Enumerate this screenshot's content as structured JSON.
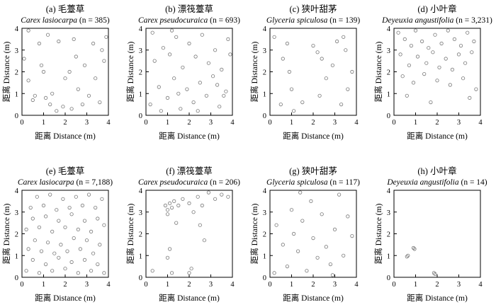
{
  "chart_data": [
    {
      "type": "scatter",
      "title": "(a) 毛薹草",
      "species": "Carex lasiocarpa",
      "count_label": "(n = 385)",
      "xlabel": "距离 Distance (m)",
      "ylabel": "距离 Distance (m)",
      "xlim": [
        0,
        4
      ],
      "ylim": [
        0,
        4
      ],
      "xticks": [
        "0",
        "1",
        "2",
        "3",
        "4"
      ],
      "yticks": [
        "0",
        "1",
        "2",
        "3",
        "4"
      ],
      "n": 385,
      "points": [
        [
          0.1,
          2.6
        ],
        [
          0.3,
          1.6
        ],
        [
          0.5,
          0.7
        ],
        [
          0.6,
          0.9
        ],
        [
          0.8,
          3.3
        ],
        [
          0.9,
          2.3
        ],
        [
          1.0,
          2.0
        ],
        [
          1.1,
          0.8
        ],
        [
          1.3,
          0.5
        ],
        [
          1.4,
          1.0
        ],
        [
          1.6,
          0.2
        ],
        [
          1.7,
          3.4
        ],
        [
          1.9,
          0.4
        ],
        [
          2.0,
          1.7
        ],
        [
          2.2,
          2.0
        ],
        [
          2.3,
          0.3
        ],
        [
          2.4,
          3.5
        ],
        [
          2.6,
          1.2
        ],
        [
          2.8,
          0.5
        ],
        [
          2.9,
          2.3
        ],
        [
          3.1,
          0.9
        ],
        [
          3.3,
          3.3
        ],
        [
          3.4,
          1.7
        ],
        [
          3.6,
          0.6
        ],
        [
          3.7,
          3.0
        ],
        [
          3.8,
          2.5
        ],
        [
          3.9,
          3.6
        ],
        [
          1.2,
          3.7
        ],
        [
          0.3,
          3.9
        ],
        [
          2.5,
          2.7
        ]
      ]
    },
    {
      "type": "scatter",
      "title": "(b) 漂筏薹草",
      "species": "Carex pseudocuraica",
      "count_label": "(n = 693)",
      "xlabel": "距离 Distance (m)",
      "ylabel": "距离 Distance (m)",
      "xlim": [
        0,
        4
      ],
      "ylim": [
        0,
        4
      ],
      "xticks": [
        "0",
        "1",
        "2",
        "3",
        "4"
      ],
      "yticks": [
        "0",
        "1",
        "2",
        "3",
        "4"
      ],
      "n": 693,
      "points": [
        [
          0.2,
          0.5
        ],
        [
          0.4,
          2.5
        ],
        [
          0.6,
          1.3
        ],
        [
          0.8,
          3.1
        ],
        [
          1.0,
          0.8
        ],
        [
          1.1,
          2.8
        ],
        [
          1.3,
          1.7
        ],
        [
          1.4,
          3.6
        ],
        [
          1.6,
          0.3
        ],
        [
          1.7,
          2.2
        ],
        [
          1.9,
          1.2
        ],
        [
          2.0,
          3.3
        ],
        [
          2.2,
          0.6
        ],
        [
          2.3,
          2.7
        ],
        [
          2.5,
          1.5
        ],
        [
          2.6,
          3.7
        ],
        [
          2.8,
          0.9
        ],
        [
          2.9,
          2.4
        ],
        [
          3.1,
          1.8
        ],
        [
          3.2,
          3.0
        ],
        [
          3.4,
          0.4
        ],
        [
          3.5,
          2.1
        ],
        [
          3.7,
          1.1
        ],
        [
          3.8,
          3.5
        ],
        [
          3.9,
          2.8
        ],
        [
          0.3,
          3.8
        ],
        [
          1.5,
          1.0
        ],
        [
          2.4,
          0.2
        ],
        [
          3.3,
          1.4
        ],
        [
          0.7,
          0.2
        ],
        [
          1.2,
          3.9
        ],
        [
          3.6,
          0.9
        ]
      ]
    },
    {
      "type": "scatter",
      "title": "(c) 狭叶甜茅",
      "species": "Glyceria spiculosa",
      "count_label": "(n = 139)",
      "xlabel": "距离 Distance (m)",
      "ylabel": "距离 Distance (m)",
      "xlim": [
        0,
        4
      ],
      "ylim": [
        0,
        4
      ],
      "xticks": [
        "0",
        "1",
        "2",
        "3",
        "4"
      ],
      "yticks": [
        "0",
        "1",
        "2",
        "3",
        "4"
      ],
      "n": 139,
      "points": [
        [
          0.2,
          3.6
        ],
        [
          0.6,
          2.6
        ],
        [
          0.8,
          3.3
        ],
        [
          0.9,
          2.0
        ],
        [
          1.0,
          1.2
        ],
        [
          1.1,
          0.2
        ],
        [
          2.0,
          3.2
        ],
        [
          2.2,
          2.9
        ],
        [
          2.4,
          2.6
        ],
        [
          2.3,
          0.9
        ],
        [
          2.6,
          1.7
        ],
        [
          2.9,
          2.3
        ],
        [
          3.1,
          3.4
        ],
        [
          3.3,
          0.5
        ],
        [
          3.5,
          3.0
        ],
        [
          3.6,
          1.2
        ],
        [
          3.8,
          2.0
        ],
        [
          3.4,
          3.6
        ],
        [
          0.5,
          0.5
        ],
        [
          1.5,
          0.6
        ]
      ]
    },
    {
      "type": "scatter",
      "title": "(d) 小叶章",
      "species": "Deyeuxia angustifolia",
      "count_label": "(n = 3,231)",
      "xlabel": "距离 Distance (m)",
      "ylabel": "距离 Distance (m)",
      "xlim": [
        0,
        4
      ],
      "ylim": [
        0,
        4
      ],
      "xticks": [
        "0",
        "1",
        "2",
        "3",
        "4"
      ],
      "yticks": [
        "0",
        "1",
        "2",
        "3",
        "4"
      ],
      "n": 3231,
      "points": [
        [
          0.2,
          3.8
        ],
        [
          0.5,
          3.5
        ],
        [
          0.8,
          3.2
        ],
        [
          1.0,
          3.9
        ],
        [
          1.3,
          3.4
        ],
        [
          1.6,
          3.1
        ],
        [
          1.9,
          3.7
        ],
        [
          2.2,
          3.3
        ],
        [
          2.5,
          3.9
        ],
        [
          2.8,
          3.5
        ],
        [
          3.1,
          3.2
        ],
        [
          3.4,
          3.8
        ],
        [
          3.7,
          3.4
        ],
        [
          0.3,
          2.8
        ],
        [
          0.7,
          2.3
        ],
        [
          1.1,
          2.7
        ],
        [
          1.5,
          2.4
        ],
        [
          1.8,
          2.9
        ],
        [
          2.1,
          2.2
        ],
        [
          2.4,
          2.6
        ],
        [
          2.7,
          2.1
        ],
        [
          3.0,
          2.8
        ],
        [
          3.3,
          2.4
        ],
        [
          3.6,
          2.9
        ],
        [
          0.4,
          1.8
        ],
        [
          0.9,
          1.5
        ],
        [
          1.4,
          1.9
        ],
        [
          2.0,
          1.6
        ],
        [
          2.6,
          1.4
        ],
        [
          3.2,
          1.7
        ],
        [
          3.8,
          1.2
        ],
        [
          0.6,
          0.9
        ],
        [
          1.7,
          0.6
        ],
        [
          3.5,
          0.8
        ]
      ]
    },
    {
      "type": "scatter",
      "title": "(e) 毛薹草",
      "species": "Carex lasiocarpa",
      "count_label": "(n = 7,188)",
      "xlabel": "距离 Distance (m)",
      "ylabel": "距离 Distance (m)",
      "xlim": [
        0,
        4
      ],
      "ylim": [
        0,
        4
      ],
      "xticks": [
        "0",
        "1",
        "2",
        "3",
        "4"
      ],
      "yticks": [
        "0",
        "1",
        "2",
        "3",
        "4"
      ],
      "n": 7188,
      "points": [
        [
          0.2,
          0.3
        ],
        [
          0.5,
          0.8
        ],
        [
          0.8,
          0.2
        ],
        [
          1.1,
          0.6
        ],
        [
          1.4,
          0.3
        ],
        [
          1.7,
          0.9
        ],
        [
          2.0,
          0.4
        ],
        [
          2.3,
          0.7
        ],
        [
          2.6,
          0.2
        ],
        [
          2.9,
          0.8
        ],
        [
          3.2,
          0.3
        ],
        [
          3.5,
          0.6
        ],
        [
          3.8,
          0.2
        ],
        [
          0.3,
          1.3
        ],
        [
          0.6,
          1.7
        ],
        [
          0.9,
          1.2
        ],
        [
          1.2,
          1.6
        ],
        [
          1.5,
          1.1
        ],
        [
          1.8,
          1.5
        ],
        [
          2.1,
          1.2
        ],
        [
          2.4,
          1.8
        ],
        [
          2.7,
          1.3
        ],
        [
          3.0,
          1.7
        ],
        [
          3.3,
          1.1
        ],
        [
          3.6,
          1.5
        ],
        [
          0.2,
          2.2
        ],
        [
          0.5,
          2.7
        ],
        [
          0.8,
          2.3
        ],
        [
          1.1,
          2.8
        ],
        [
          1.4,
          2.1
        ],
        [
          1.7,
          2.6
        ],
        [
          2.0,
          2.3
        ],
        [
          2.3,
          2.9
        ],
        [
          2.6,
          2.2
        ],
        [
          2.9,
          2.6
        ],
        [
          3.2,
          2.1
        ],
        [
          3.5,
          2.7
        ],
        [
          3.8,
          2.4
        ],
        [
          0.4,
          3.2
        ],
        [
          0.7,
          3.7
        ],
        [
          1.0,
          3.3
        ],
        [
          1.3,
          3.8
        ],
        [
          1.6,
          3.1
        ],
        [
          1.9,
          3.6
        ],
        [
          2.2,
          3.2
        ],
        [
          2.5,
          3.7
        ],
        [
          2.8,
          3.3
        ],
        [
          3.1,
          3.8
        ],
        [
          3.4,
          3.2
        ],
        [
          3.7,
          3.6
        ]
      ]
    },
    {
      "type": "scatter",
      "title": "(f) 漂筏薹草",
      "species": "Carex pseudocuraica",
      "count_label": "(n = 206)",
      "xlabel": "距离 Distance (m)",
      "ylabel": "距离 Distance (m)",
      "xlim": [
        0,
        4
      ],
      "ylim": [
        0,
        4
      ],
      "xticks": [
        "0",
        "1",
        "2",
        "3",
        "4"
      ],
      "yticks": [
        "0",
        "1",
        "2",
        "3",
        "4"
      ],
      "n": 206,
      "points": [
        [
          0.9,
          3.3
        ],
        [
          1.0,
          3.1
        ],
        [
          1.1,
          3.4
        ],
        [
          1.2,
          3.2
        ],
        [
          1.0,
          2.9
        ],
        [
          1.3,
          3.5
        ],
        [
          1.5,
          3.3
        ],
        [
          1.7,
          3.6
        ],
        [
          2.0,
          3.4
        ],
        [
          2.2,
          3.0
        ],
        [
          2.4,
          3.7
        ],
        [
          2.6,
          3.3
        ],
        [
          2.9,
          3.9
        ],
        [
          3.2,
          3.6
        ],
        [
          3.5,
          3.8
        ],
        [
          3.8,
          3.7
        ],
        [
          2.5,
          2.4
        ],
        [
          1.1,
          1.3
        ],
        [
          0.3,
          0.3
        ],
        [
          1.0,
          0.9
        ],
        [
          2.0,
          0.2
        ],
        [
          2.1,
          0.4
        ],
        [
          1.2,
          0.2
        ],
        [
          2.7,
          1.7
        ],
        [
          1.4,
          2.5
        ]
      ]
    },
    {
      "type": "scatter",
      "title": "(g) 狭叶甜茅",
      "species": "Glyceria spiculosa",
      "count_label": "(n = 117)",
      "xlabel": "距离 Distance (m)",
      "ylabel": "距离 Distance (m)",
      "xlim": [
        0,
        4
      ],
      "ylim": [
        0,
        4
      ],
      "xticks": [
        "0",
        "1",
        "2",
        "3",
        "4"
      ],
      "yticks": [
        "0",
        "1",
        "2",
        "3",
        "4"
      ],
      "n": 117,
      "points": [
        [
          0.3,
          2.4
        ],
        [
          0.6,
          1.5
        ],
        [
          0.8,
          0.5
        ],
        [
          1.0,
          3.1
        ],
        [
          1.1,
          2.0
        ],
        [
          1.3,
          1.2
        ],
        [
          1.5,
          2.6
        ],
        [
          1.7,
          0.3
        ],
        [
          1.9,
          3.5
        ],
        [
          2.0,
          1.8
        ],
        [
          2.2,
          0.9
        ],
        [
          2.4,
          2.9
        ],
        [
          2.6,
          1.4
        ],
        [
          2.8,
          0.6
        ],
        [
          3.0,
          2.2
        ],
        [
          3.2,
          3.8
        ],
        [
          3.4,
          1.0
        ],
        [
          3.6,
          2.8
        ],
        [
          3.8,
          1.9
        ],
        [
          0.2,
          0.2
        ],
        [
          1.4,
          3.9
        ],
        [
          2.9,
          0.1
        ]
      ]
    },
    {
      "type": "scatter",
      "title": "(h) 小叶章",
      "species": "Deyeuxia angustifolia",
      "count_label": "(n = 14)",
      "xlabel": "距离 Distance (m)",
      "ylabel": "距离 Distance (m)",
      "xlim": [
        0,
        4
      ],
      "ylim": [
        0,
        4
      ],
      "xticks": [
        "0",
        "1",
        "2",
        "3",
        "4"
      ],
      "yticks": [
        "0",
        "1",
        "2",
        "3",
        "4"
      ],
      "n": 14,
      "points": [
        [
          0.6,
          0.95
        ],
        [
          0.65,
          1.0
        ],
        [
          0.9,
          1.35
        ],
        [
          0.95,
          1.3
        ],
        [
          1.85,
          0.2
        ],
        [
          1.9,
          0.15
        ]
      ]
    }
  ]
}
